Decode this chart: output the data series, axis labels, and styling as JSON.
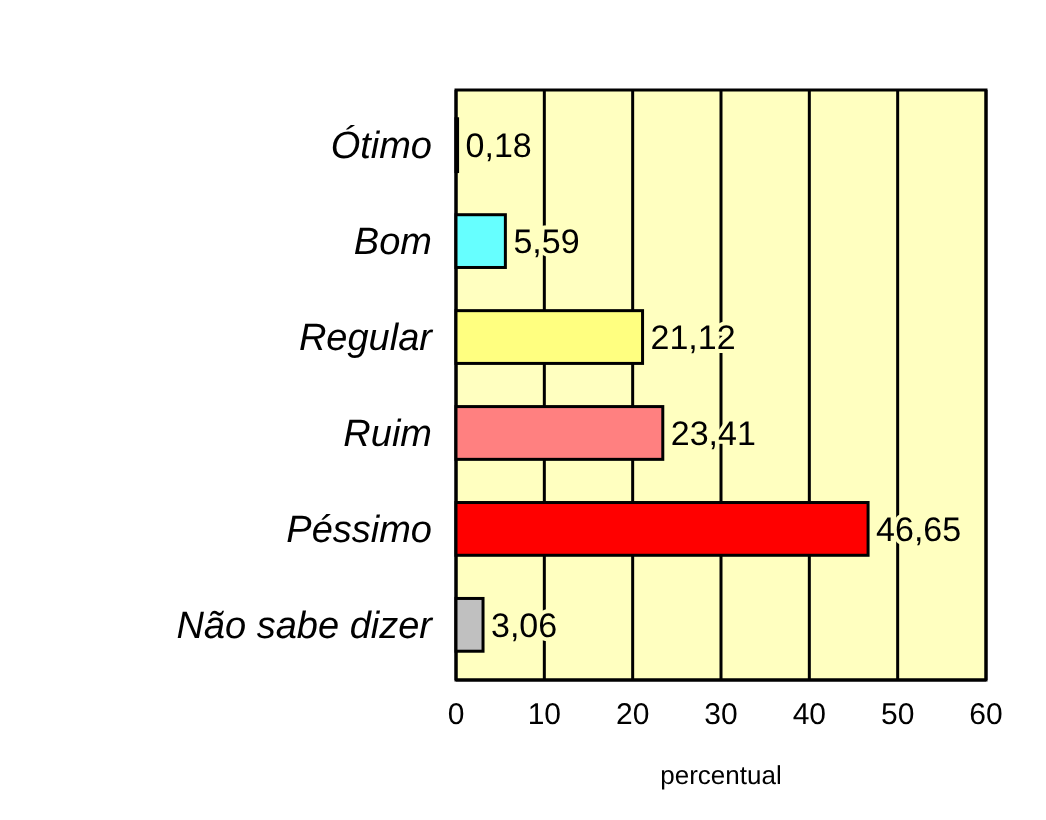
{
  "chart_data": {
    "type": "bar",
    "orientation": "horizontal",
    "xlabel": "percentual",
    "categories": [
      "Ótimo",
      "Bom",
      "Regular",
      "Ruim",
      "Péssimo",
      "Não sabe dizer"
    ],
    "values": [
      0.18,
      5.59,
      21.12,
      23.41,
      46.65,
      3.06
    ],
    "value_labels": [
      "0,18",
      "5,59",
      "21,12",
      "23,41",
      "46,65",
      "3,06"
    ],
    "colors": [
      "#1f4f5f",
      "#66ffff",
      "#ffff80",
      "#ff8080",
      "#ff0000",
      "#c0c0c0"
    ],
    "xlim": [
      0,
      60
    ],
    "xticks": [
      0,
      10,
      20,
      30,
      40,
      50,
      60
    ],
    "grid": "x"
  }
}
